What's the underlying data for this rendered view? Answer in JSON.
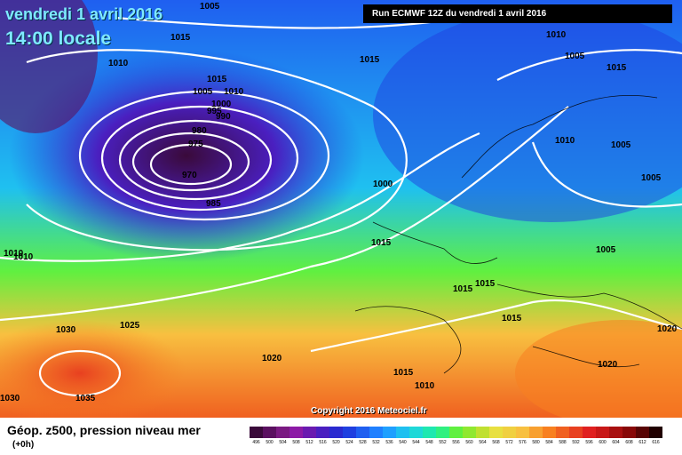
{
  "title": {
    "date": "vendredi 1 avril 2016",
    "time": "14:00 locale"
  },
  "run_label": "Run ECMWF 12Z du vendredi 1 avril 2016",
  "copyright": "Copyright 2016 Meteociel.fr",
  "legend": {
    "title": "Géop. z500, pression niveau mer",
    "subtitle": "(+0h)",
    "values": [
      "496",
      "500",
      "504",
      "508",
      "512",
      "516",
      "520",
      "524",
      "528",
      "532",
      "536",
      "540",
      "544",
      "548",
      "552",
      "556",
      "560",
      "564",
      "568",
      "572",
      "576",
      "580",
      "584",
      "588",
      "592",
      "596",
      "600",
      "604",
      "608",
      "612",
      "616"
    ],
    "colors": [
      "#3a0a3a",
      "#5a1060",
      "#7a1a82",
      "#8c1aa6",
      "#6a1ab0",
      "#4a1fc0",
      "#2a2ad0",
      "#1f3fe0",
      "#1f5ff0",
      "#1f80ff",
      "#1fa0ff",
      "#1fc0f0",
      "#1fd8d8",
      "#1fe8b0",
      "#30f080",
      "#60f040",
      "#90e830",
      "#c0e030",
      "#e8e040",
      "#f0d040",
      "#f8c040",
      "#f8a030",
      "#f88020",
      "#f06020",
      "#e84020",
      "#e02020",
      "#c81818",
      "#a81010",
      "#880808",
      "#580404",
      "#200000"
    ]
  },
  "isobar_labels": [
    "1005",
    "1015",
    "1010",
    "1015",
    "1010",
    "1005",
    "1015",
    "1010",
    "1005",
    "1015",
    "1010",
    "1005",
    "1000",
    "995",
    "990",
    "980",
    "975",
    "970",
    "985",
    "1000",
    "1015",
    "1005",
    "1005",
    "1010",
    "1010",
    "1015",
    "1015",
    "1015",
    "1020",
    "1030",
    "1025",
    "1020",
    "1035",
    "1030",
    "1015",
    "1010",
    "1020"
  ]
}
